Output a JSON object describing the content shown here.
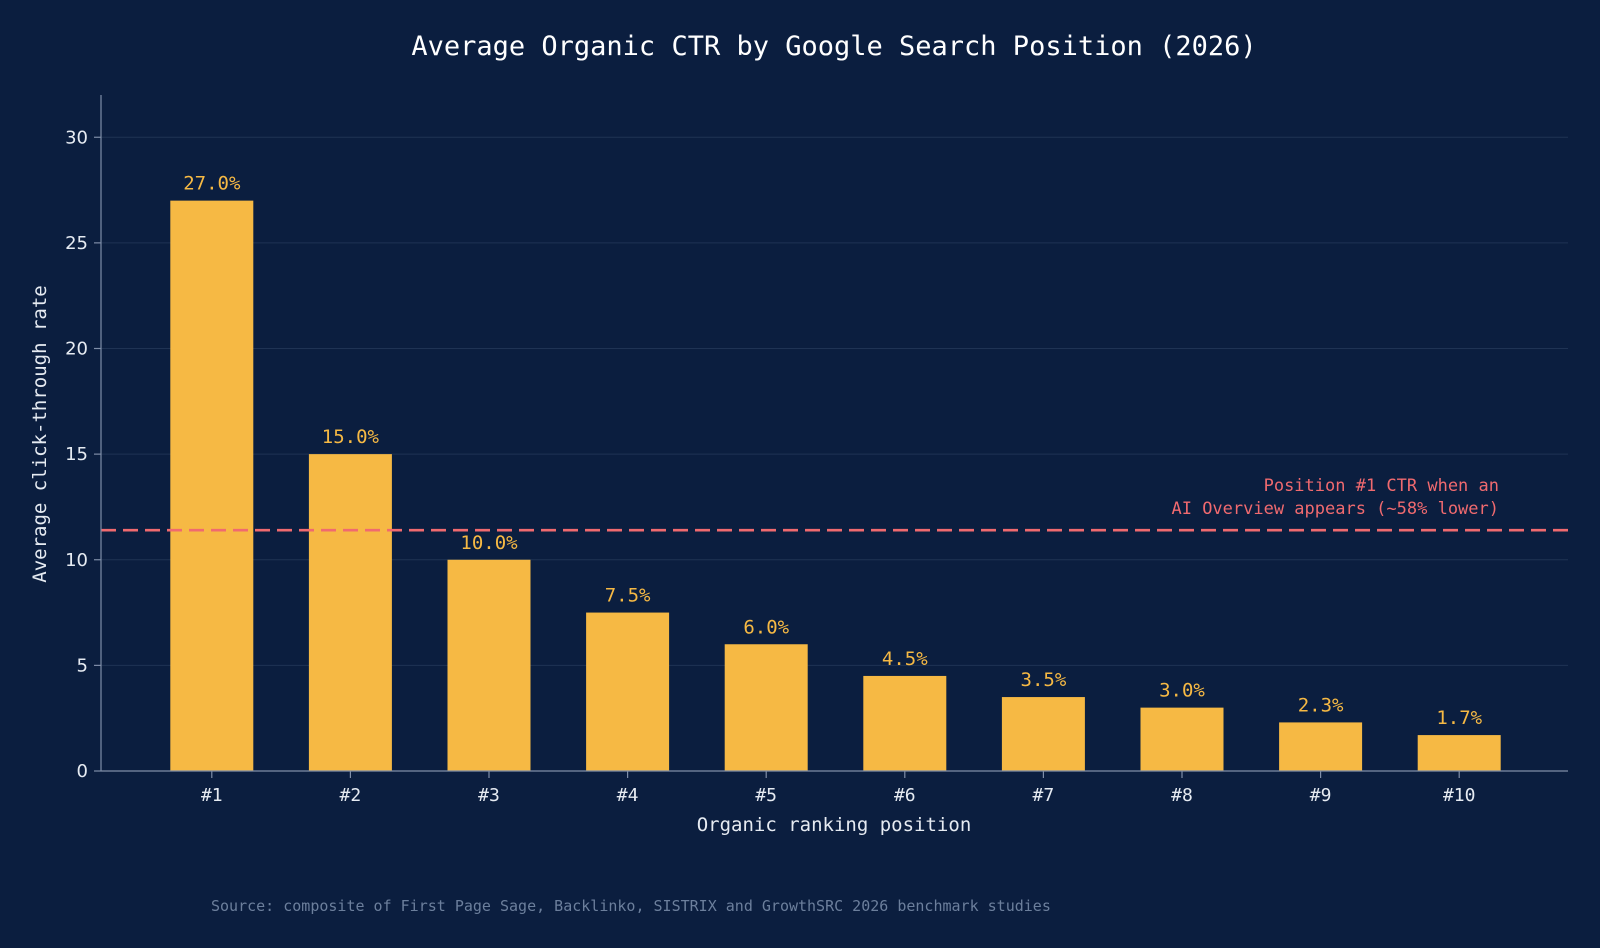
{
  "colors": {
    "background": "#0b1e3f",
    "bar": "#f6b944",
    "reference_line": "#f06a6f",
    "grid": "#1f3354",
    "text": "#e6ebf2",
    "source": "#6c7f9c"
  },
  "chart_data": {
    "type": "bar",
    "title": "Average Organic CTR by Google Search Position (2026)",
    "xlabel": "Organic ranking position",
    "ylabel": "Average click-through rate",
    "categories": [
      "#1",
      "#2",
      "#3",
      "#4",
      "#5",
      "#6",
      "#7",
      "#8",
      "#9",
      "#10"
    ],
    "values": [
      27.0,
      15.0,
      10.0,
      7.5,
      6.0,
      4.5,
      3.5,
      3.0,
      2.3,
      1.7
    ],
    "value_labels": [
      "27.0%",
      "15.0%",
      "10.0%",
      "7.5%",
      "6.0%",
      "4.5%",
      "3.5%",
      "3.0%",
      "2.3%",
      "1.7%"
    ],
    "ylim": [
      0,
      32
    ],
    "yticks": [
      0,
      5,
      10,
      15,
      20,
      25,
      30
    ],
    "grid": "horizontal",
    "reference_line": {
      "value": 11.4,
      "style": "dashed",
      "label_lines": [
        "Position #1 CTR when an",
        "AI Overview appears (~58% lower)"
      ]
    },
    "source": "Source: composite of First Page Sage, Backlinko, SISTRIX and GrowthSRC 2026 benchmark studies"
  }
}
